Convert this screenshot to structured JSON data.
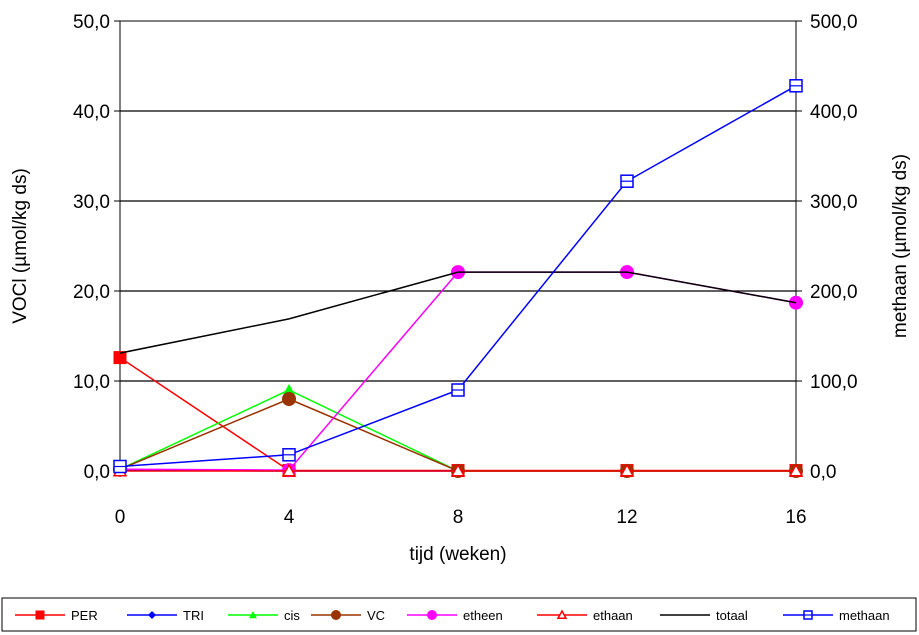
{
  "chart_data": {
    "type": "line",
    "x": [
      0,
      4,
      8,
      12,
      16
    ],
    "xlabel": "tijd (weken)",
    "ylabel": "VOCl (µmol/kg ds)",
    "y2label": "methaan  (µmol/kg ds)",
    "xlim": [
      0,
      16
    ],
    "ylim": [
      0,
      50
    ],
    "y2lim": [
      0,
      500
    ],
    "x_ticks": [
      "0",
      "4",
      "8",
      "12",
      "16"
    ],
    "y_ticks": [
      "0,0",
      "10,0",
      "20,0",
      "30,0",
      "40,0",
      "50,0"
    ],
    "y2_ticks": [
      "0,0",
      "100,0",
      "200,0",
      "300,0",
      "400,0",
      "500,0"
    ],
    "grid": "horizontal",
    "legend_position": "bottom",
    "series": [
      {
        "name": "PER",
        "axis": "left",
        "color": "#ff0000",
        "marker": "square-filled",
        "values": [
          12.6,
          0.05,
          0.05,
          0.05,
          0.05
        ]
      },
      {
        "name": "TRI",
        "axis": "left",
        "color": "#0000ff",
        "marker": "diamond-filled",
        "values": [
          0.1,
          0.0,
          0.0,
          0.0,
          0.0
        ]
      },
      {
        "name": "cis",
        "axis": "left",
        "color": "#00ff00",
        "marker": "triangle-filled",
        "values": [
          0.2,
          9.0,
          0.0,
          0.0,
          0.0
        ]
      },
      {
        "name": "VC",
        "axis": "left",
        "color": "#993300",
        "marker": "circle-filled",
        "values": [
          0.2,
          8.0,
          0.0,
          0.0,
          0.0
        ]
      },
      {
        "name": "etheen",
        "axis": "left",
        "color": "#ff00ff",
        "marker": "circle-filled",
        "values": [
          0.2,
          0.1,
          22.1,
          22.1,
          18.7
        ]
      },
      {
        "name": "ethaan",
        "axis": "left",
        "color": "#ff0000",
        "marker": "triangle-open",
        "values": [
          0.0,
          0.0,
          0.0,
          0.0,
          0.0
        ]
      },
      {
        "name": "totaal",
        "axis": "left",
        "color": "#000000",
        "marker": "none",
        "values": [
          13.1,
          16.9,
          22.1,
          22.1,
          18.7
        ]
      },
      {
        "name": "methaan",
        "axis": "right",
        "color": "#0000ff",
        "marker": "square-open",
        "values": [
          5,
          18,
          90,
          322,
          428
        ]
      }
    ]
  }
}
